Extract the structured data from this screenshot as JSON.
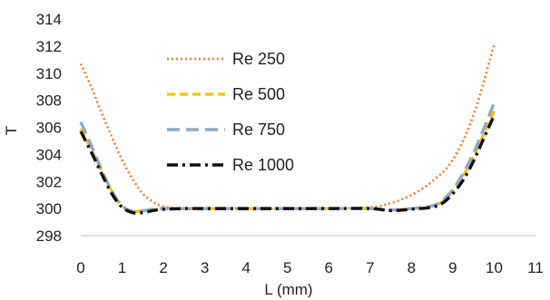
{
  "chart_data": {
    "type": "line",
    "title": "",
    "xlabel": "L (mm)",
    "ylabel": "T",
    "xlim": [
      0,
      11
    ],
    "ylim": [
      298,
      314
    ],
    "xticks": [
      0,
      1,
      2,
      3,
      4,
      5,
      6,
      7,
      8,
      9,
      10,
      11
    ],
    "yticks": [
      298,
      300,
      302,
      304,
      306,
      308,
      310,
      312,
      314
    ],
    "grid": false,
    "legend": "inside-top-left",
    "series": [
      {
        "name": "Re 250",
        "color": "#ED7D31",
        "dash": "dotted",
        "x": [
          0,
          0.25,
          0.5,
          0.75,
          1,
          1.25,
          1.5,
          1.75,
          2,
          2.5,
          3,
          4,
          5,
          6,
          7,
          7.5,
          8,
          8.5,
          9,
          9.5,
          10
        ],
        "y": [
          310.7,
          309.0,
          307.1,
          305.3,
          303.6,
          302.2,
          301.1,
          300.5,
          300.15,
          300.0,
          300.0,
          300.0,
          300.0,
          300.0,
          300.1,
          300.4,
          301.0,
          302.0,
          303.6,
          306.9,
          312.1
        ]
      },
      {
        "name": "Re 500",
        "color": "#FFC000",
        "dash": "dashed",
        "x": [
          0,
          0.25,
          0.5,
          0.75,
          1,
          1.25,
          1.5,
          1.75,
          2,
          2.5,
          3,
          4,
          5,
          6,
          7,
          7.5,
          8,
          8.5,
          8.75,
          9,
          9.25,
          9.5,
          9.75,
          10
        ],
        "y": [
          305.9,
          304.4,
          302.8,
          301.3,
          300.2,
          299.8,
          299.85,
          299.95,
          300.0,
          300.0,
          300.0,
          300.0,
          300.0,
          300.0,
          300.0,
          299.9,
          300.0,
          300.2,
          300.5,
          301.3,
          302.4,
          303.8,
          305.5,
          307.2
        ]
      },
      {
        "name": "Re 750",
        "color": "#8EA9C1",
        "dash": "long-dash",
        "x": [
          0,
          0.25,
          0.5,
          0.75,
          1,
          1.25,
          1.5,
          1.75,
          2,
          2.5,
          3,
          4,
          5,
          6,
          7,
          7.5,
          8,
          8.5,
          8.75,
          9,
          9.25,
          9.5,
          9.75,
          10
        ],
        "y": [
          306.4,
          304.7,
          302.9,
          301.3,
          300.2,
          299.8,
          299.85,
          299.95,
          300.0,
          300.0,
          300.0,
          300.0,
          300.0,
          300.0,
          300.0,
          299.9,
          300.0,
          300.2,
          300.6,
          301.4,
          302.6,
          304.1,
          305.9,
          307.8
        ]
      },
      {
        "name": "Re 1000",
        "color": "#111111",
        "dash": "dash-dot",
        "x": [
          0,
          0.25,
          0.5,
          0.75,
          1,
          1.25,
          1.5,
          1.75,
          2,
          2.5,
          3,
          4,
          5,
          6,
          7,
          7.5,
          8,
          8.5,
          8.75,
          9,
          9.25,
          9.5,
          9.75,
          10
        ],
        "y": [
          305.7,
          304.2,
          302.6,
          301.1,
          300.1,
          299.7,
          299.7,
          299.85,
          299.95,
          300.0,
          300.0,
          300.0,
          300.0,
          300.0,
          300.0,
          299.85,
          299.95,
          300.1,
          300.4,
          301.1,
          302.1,
          303.5,
          305.2,
          306.9
        ]
      }
    ]
  }
}
